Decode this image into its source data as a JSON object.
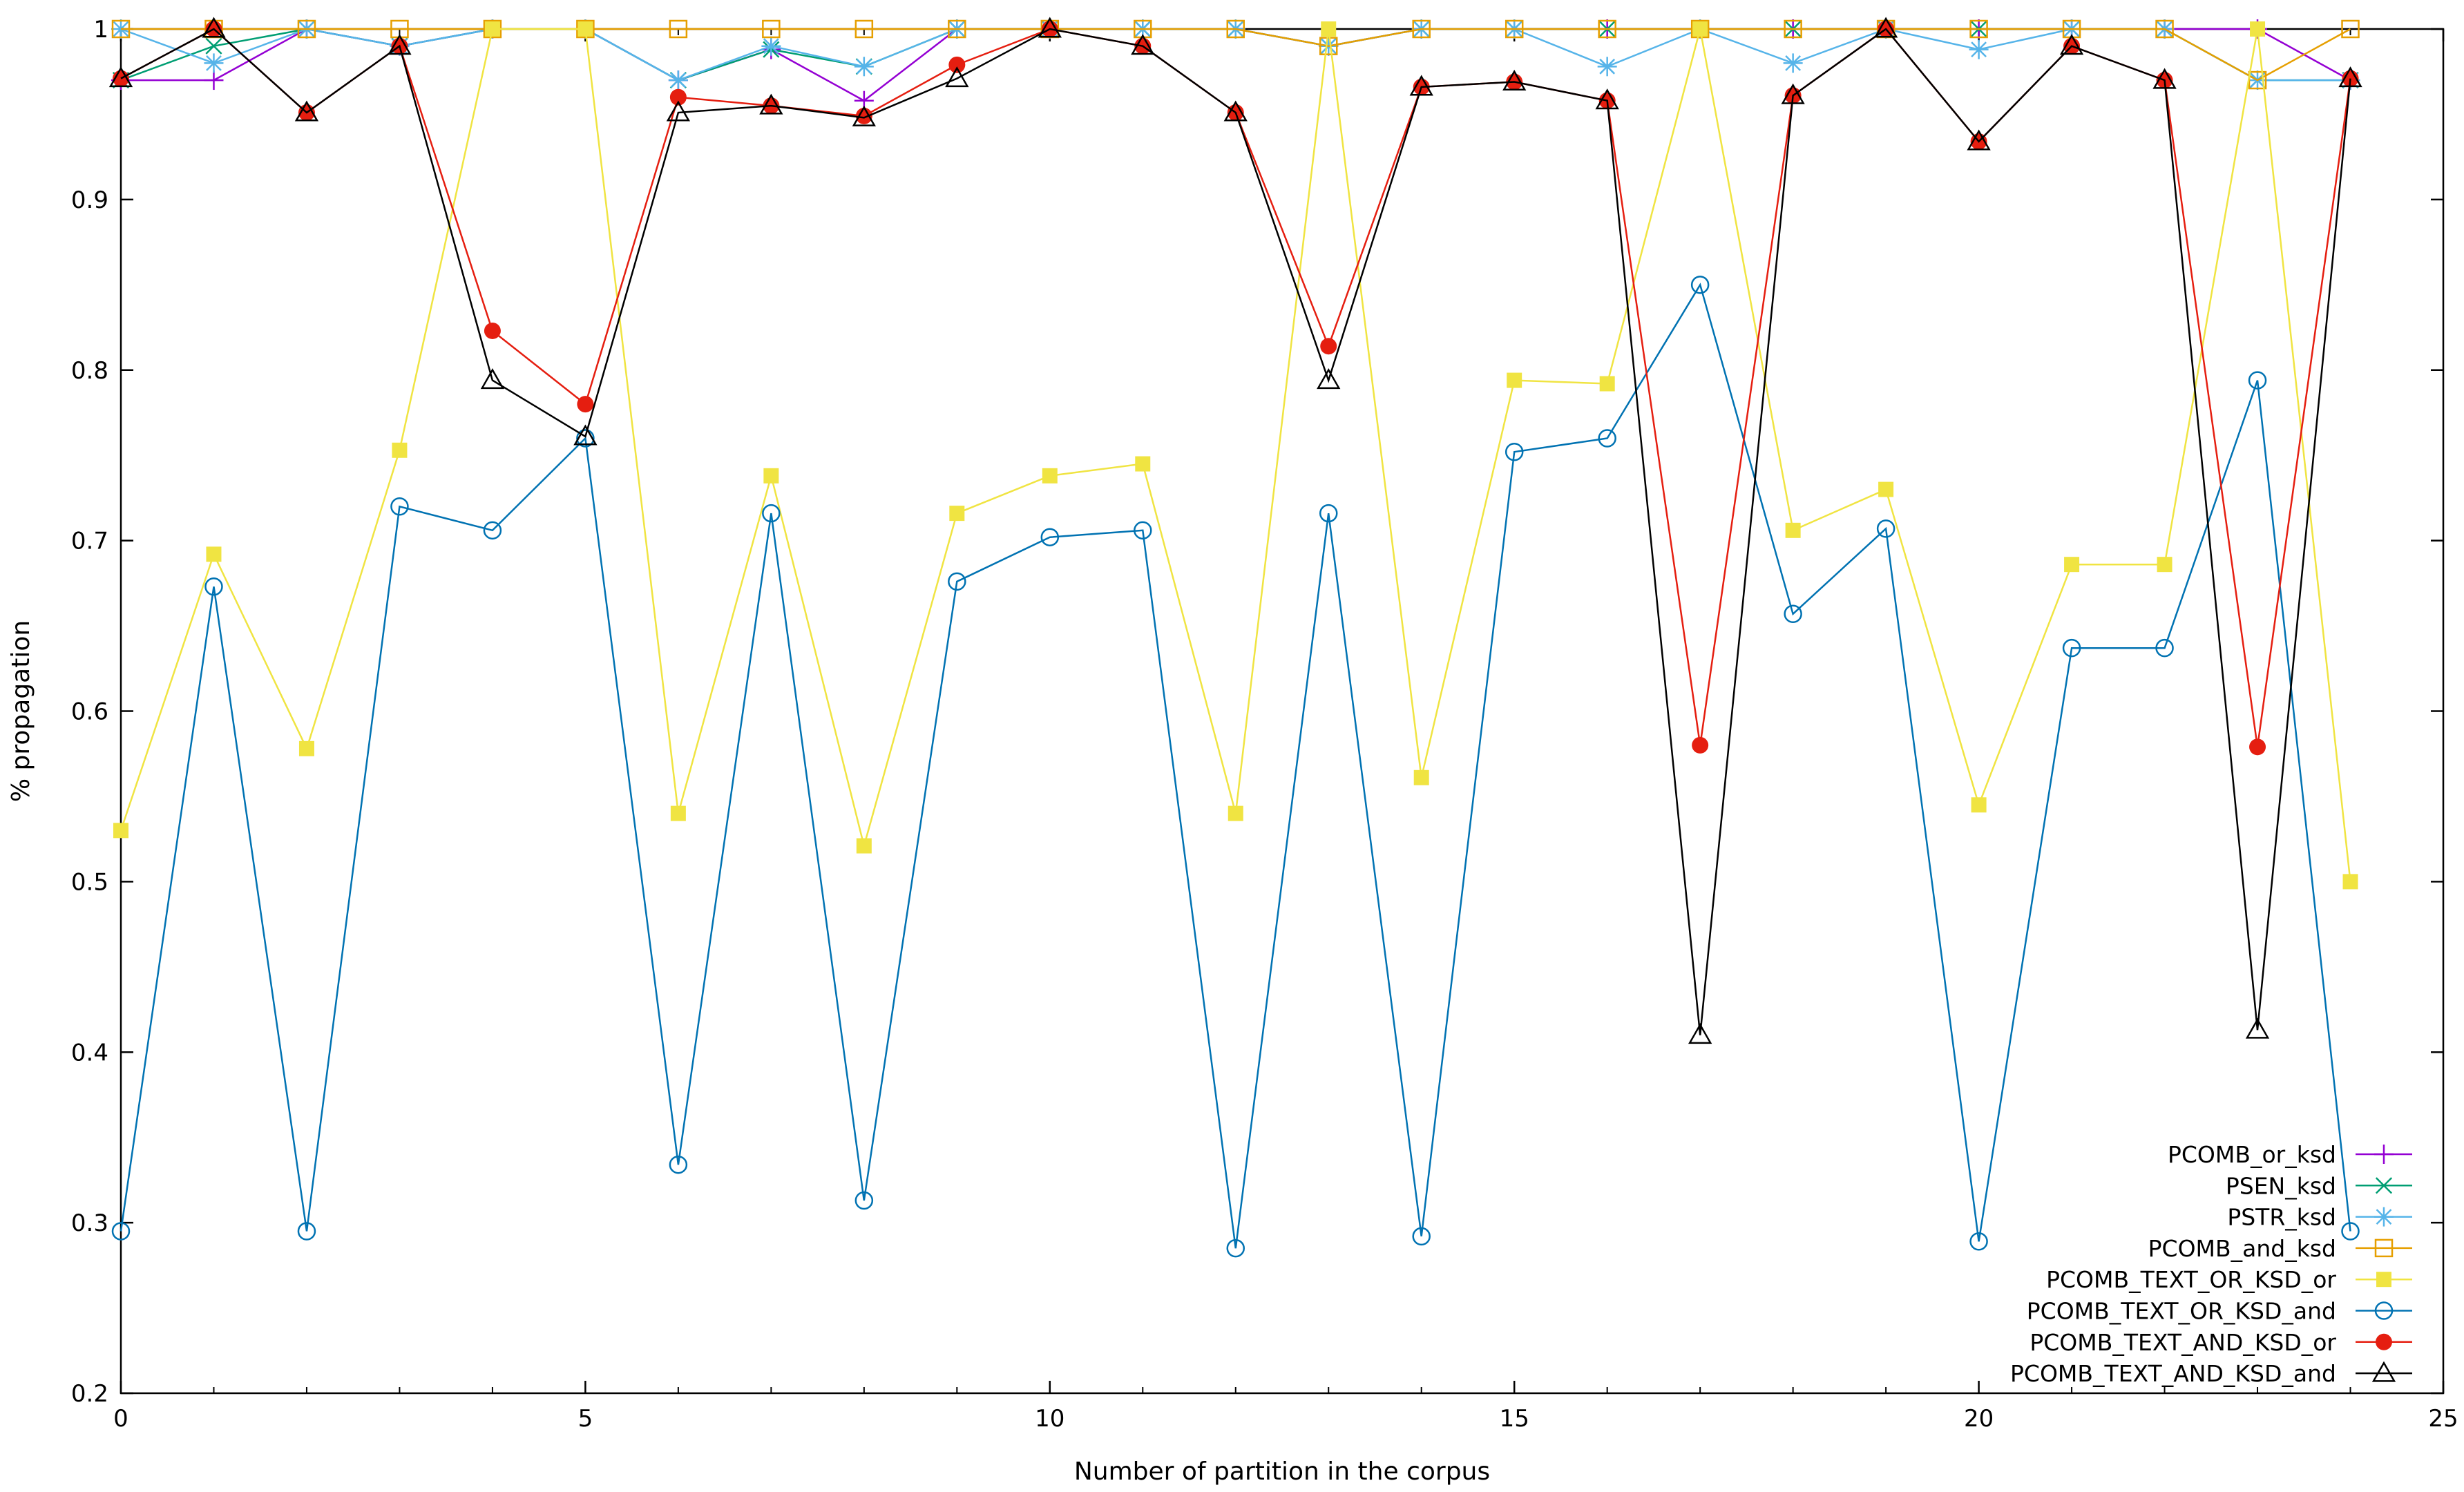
{
  "chart_data": {
    "type": "line",
    "title": "",
    "xlabel": "Number of partition in the corpus",
    "ylabel": "% propagation",
    "xlim": [
      0,
      25
    ],
    "ylim": [
      0.2,
      1.0
    ],
    "x_ticks": [
      0,
      5,
      10,
      15,
      20,
      25
    ],
    "x_tick_labels": [
      "0",
      "5",
      "10",
      "15",
      "20",
      "25"
    ],
    "y_ticks": [
      0.2,
      0.3,
      0.4,
      0.5,
      0.6,
      0.7,
      0.8,
      0.9,
      1.0
    ],
    "y_tick_labels": [
      "0.2",
      "0.3",
      "0.4",
      "0.5",
      "0.6",
      "0.7",
      "0.8",
      "0.9",
      "1"
    ],
    "grid": false,
    "legend_position": "bottom-right",
    "x": [
      0,
      1,
      2,
      3,
      4,
      5,
      6,
      7,
      8,
      9,
      10,
      11,
      12,
      13,
      14,
      15,
      16,
      17,
      18,
      19,
      20,
      21,
      22,
      23,
      24
    ],
    "series": [
      {
        "name": "PCOMB_or_ksd",
        "color": "#9400d3",
        "marker": "plus",
        "values": [
          0.97,
          0.97,
          1,
          0.99,
          1,
          1,
          0.97,
          0.988,
          0.958,
          1,
          1,
          1,
          1,
          0.99,
          1,
          1,
          1,
          1,
          1,
          1,
          1,
          1,
          1,
          1,
          0.97
        ]
      },
      {
        "name": "PSEN_ksd",
        "color": "#009e73",
        "marker": "cross",
        "values": [
          0.97,
          0.99,
          1,
          0.99,
          1,
          1,
          0.97,
          0.988,
          0.978,
          1,
          1,
          1,
          1,
          0.99,
          1,
          1,
          1,
          1,
          1,
          1,
          1,
          1,
          1,
          0.97,
          0.97
        ]
      },
      {
        "name": "PSTR_ksd",
        "color": "#56b4e9",
        "marker": "star",
        "values": [
          1,
          0.98,
          1,
          0.99,
          1,
          1,
          0.97,
          0.99,
          0.978,
          1,
          1,
          1,
          1,
          0.99,
          1,
          1,
          0.978,
          1,
          0.98,
          1,
          0.988,
          1,
          1,
          0.97,
          0.97
        ]
      },
      {
        "name": "PCOMB_and_ksd",
        "color": "#e69f00",
        "marker": "square-open",
        "values": [
          1,
          1,
          1,
          1,
          1,
          1,
          1,
          1,
          1,
          1,
          1,
          1,
          1,
          0.99,
          1,
          1,
          1,
          1,
          1,
          1,
          1,
          1,
          1,
          0.97,
          1
        ]
      },
      {
        "name": "PCOMB_TEXT_OR_KSD_or",
        "color": "#f0e442",
        "marker": "square-filled",
        "values": [
          0.53,
          0.692,
          0.578,
          0.753,
          1,
          1,
          0.54,
          0.738,
          0.521,
          0.716,
          0.738,
          0.745,
          0.54,
          1,
          0.561,
          0.794,
          0.792,
          1,
          0.706,
          0.73,
          0.545,
          0.686,
          0.686,
          1,
          0.5
        ]
      },
      {
        "name": "PCOMB_TEXT_OR_KSD_and",
        "color": "#0072b2",
        "marker": "circle-open",
        "values": [
          0.295,
          0.673,
          0.295,
          0.72,
          0.706,
          0.76,
          0.334,
          0.716,
          0.313,
          0.676,
          0.702,
          0.706,
          0.285,
          0.716,
          0.292,
          0.752,
          0.76,
          0.85,
          0.657,
          0.707,
          0.289,
          0.637,
          0.637,
          0.794,
          0.295
        ]
      },
      {
        "name": "PCOMB_TEXT_AND_KSD_or",
        "color": "#e51e10",
        "marker": "circle-filled",
        "values": [
          0.971,
          1,
          0.951,
          0.99,
          0.823,
          0.78,
          0.96,
          0.955,
          0.949,
          0.979,
          1,
          0.99,
          0.951,
          0.814,
          0.966,
          0.969,
          0.958,
          0.58,
          0.961,
          1,
          0.934,
          0.99,
          0.97,
          0.579,
          0.971
        ]
      },
      {
        "name": "PCOMB_TEXT_AND_KSD_and",
        "color": "#000000",
        "marker": "triangle-open",
        "values": [
          0.971,
          1,
          0.951,
          0.99,
          0.794,
          0.761,
          0.951,
          0.955,
          0.948,
          0.971,
          1,
          0.99,
          0.951,
          0.794,
          0.966,
          0.969,
          0.958,
          0.41,
          0.961,
          1,
          0.934,
          0.99,
          0.97,
          0.413,
          0.971
        ]
      }
    ]
  }
}
